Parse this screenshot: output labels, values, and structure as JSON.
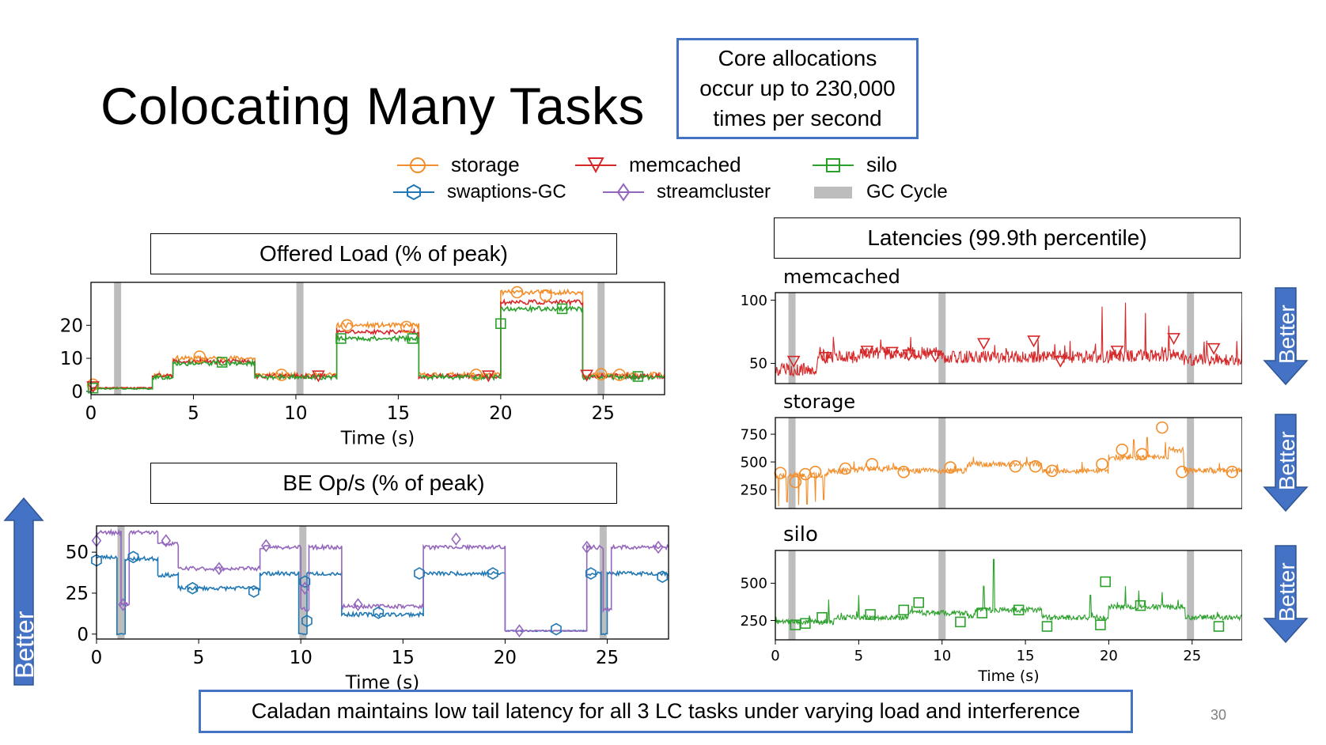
{
  "slide": {
    "title": "Colocating Many Tasks",
    "callout": "Core allocations occur up to 230,000 times per second",
    "bottom_banner": "Caladan maintains low tail latency for all 3 LC tasks under varying load and interference",
    "page_number": "30",
    "better_label": "Better"
  },
  "legend": [
    {
      "label": "storage",
      "color": "#f28e2b",
      "marker": "circle"
    },
    {
      "label": "memcached",
      "color": "#d62728",
      "marker": "triangle-down"
    },
    {
      "label": "silo",
      "color": "#2ca02c",
      "marker": "square"
    },
    {
      "label": "swaptions-GC",
      "color": "#1f77b4",
      "marker": "hexagon"
    },
    {
      "label": "streamcluster",
      "color": "#9467bd",
      "marker": "diamond"
    },
    {
      "label": "GC Cycle",
      "color": "#bdbdbd",
      "marker": "band"
    }
  ],
  "colors": {
    "storage": "#f28e2b",
    "memcached": "#d62728",
    "silo": "#2ca02c",
    "swaptions": "#1f77b4",
    "streamcluster": "#9467bd",
    "gc": "#bdbdbd",
    "accent": "#4472c4"
  },
  "chart_data": [
    {
      "id": "offered-load",
      "type": "line",
      "title": "Offered Load (% of peak)",
      "xlabel": "Time (s)",
      "ylabel": "",
      "xlim": [
        0,
        28
      ],
      "ylim": [
        -1,
        33
      ],
      "xticks": [
        0,
        5,
        10,
        15,
        20,
        25
      ],
      "yticks": [
        0,
        10,
        20
      ],
      "gc_cycles": [
        1.3,
        10.2,
        24.9
      ],
      "series": [
        {
          "name": "storage",
          "key": "storage",
          "steps": [
            [
              0,
              1
            ],
            [
              3,
              5
            ],
            [
              4,
              10
            ],
            [
              8,
              5
            ],
            [
              12,
              20
            ],
            [
              16,
              5
            ],
            [
              20,
              30
            ],
            [
              24,
              5
            ],
            [
              28,
              5
            ]
          ],
          "markers": [
            [
              0.1,
              2
            ],
            [
              5.3,
              10.5
            ],
            [
              9.3,
              5
            ],
            [
              12.5,
              20
            ],
            [
              15.4,
              19.5
            ],
            [
              18.8,
              5
            ],
            [
              20.8,
              30
            ],
            [
              22.2,
              29
            ],
            [
              24.9,
              5.2
            ],
            [
              25.8,
              5
            ]
          ]
        },
        {
          "name": "memcached",
          "key": "memcached",
          "steps": [
            [
              0,
              1
            ],
            [
              3,
              4.6
            ],
            [
              4,
              9
            ],
            [
              8,
              4.6
            ],
            [
              12,
              18
            ],
            [
              16,
              4.6
            ],
            [
              20,
              27
            ],
            [
              24,
              4.6
            ],
            [
              28,
              4.6
            ]
          ],
          "markers": [
            [
              0.1,
              1.5
            ],
            [
              11.1,
              4.8
            ],
            [
              19.4,
              4.8
            ],
            [
              24.2,
              5
            ]
          ]
        },
        {
          "name": "silo",
          "key": "silo",
          "steps": [
            [
              0,
              0.8
            ],
            [
              3,
              4.3
            ],
            [
              4,
              8.5
            ],
            [
              8,
              4.3
            ],
            [
              12,
              16
            ],
            [
              16,
              4.3
            ],
            [
              20,
              25
            ],
            [
              24,
              4.3
            ],
            [
              28,
              4.3
            ]
          ],
          "markers": [
            [
              0.1,
              1
            ],
            [
              6.4,
              8.8
            ],
            [
              12.2,
              16
            ],
            [
              15.7,
              16
            ],
            [
              20,
              20.5
            ],
            [
              23,
              25
            ],
            [
              26.7,
              4.5
            ]
          ]
        }
      ]
    },
    {
      "id": "be-ops",
      "type": "line",
      "title": "BE Op/s (% of peak)",
      "xlabel": "Time (s)",
      "ylabel": "",
      "xlim": [
        0,
        28
      ],
      "ylim": [
        -3,
        66
      ],
      "xticks": [
        0,
        5,
        10,
        15,
        20,
        25
      ],
      "yticks": [
        0,
        25,
        50
      ],
      "gc_cycles": [
        1.2,
        10.1,
        24.8
      ],
      "series": [
        {
          "name": "swaptions-GC",
          "key": "swaptions",
          "steps": [
            [
              0,
              47
            ],
            [
              1,
              0
            ],
            [
              1.4,
              46
            ],
            [
              3,
              36
            ],
            [
              4,
              28
            ],
            [
              8,
              37
            ],
            [
              9.9,
              0
            ],
            [
              10.3,
              37
            ],
            [
              12,
              12
            ],
            [
              16,
              37
            ],
            [
              20,
              2
            ],
            [
              24,
              37
            ],
            [
              24.7,
              0
            ],
            [
              25,
              37
            ],
            [
              28,
              37
            ]
          ],
          "markers": [
            [
              0,
              45
            ],
            [
              1.8,
              47
            ],
            [
              4.7,
              28
            ],
            [
              7.7,
              26
            ],
            [
              10.2,
              32
            ],
            [
              10.3,
              8
            ],
            [
              13.8,
              13
            ],
            [
              15.8,
              37
            ],
            [
              19.4,
              37
            ],
            [
              22.5,
              3
            ],
            [
              24.2,
              37
            ],
            [
              27.7,
              35
            ]
          ]
        },
        {
          "name": "streamcluster",
          "key": "streamcluster",
          "steps": [
            [
              0,
              62
            ],
            [
              1.2,
              18
            ],
            [
              1.6,
              62
            ],
            [
              3,
              55
            ],
            [
              4,
              40
            ],
            [
              8,
              53
            ],
            [
              10,
              15
            ],
            [
              10.4,
              53
            ],
            [
              12,
              17
            ],
            [
              16,
              53
            ],
            [
              20,
              2
            ],
            [
              24,
              53
            ],
            [
              24.8,
              15
            ],
            [
              25.2,
              53
            ],
            [
              28,
              53
            ]
          ],
          "markers": [
            [
              0,
              57
            ],
            [
              1.3,
              18
            ],
            [
              3.4,
              57
            ],
            [
              6,
              40
            ],
            [
              8.3,
              54
            ],
            [
              10.2,
              28
            ],
            [
              12.8,
              18
            ],
            [
              17.6,
              58
            ],
            [
              20.7,
              2
            ],
            [
              24,
              53
            ],
            [
              27.5,
              53
            ]
          ]
        }
      ]
    },
    {
      "id": "latency-memcached",
      "type": "line",
      "title": "Latencies (99.9th percentile)",
      "subtitle": "memcached",
      "xlim": [
        0,
        28
      ],
      "ylim": [
        34,
        106
      ],
      "yticks": [
        50,
        100
      ],
      "gc_cycles": [
        1.0,
        10.0,
        24.9
      ],
      "series": [
        {
          "name": "memcached",
          "key": "memcached",
          "levels": [
            [
              0,
              45
            ],
            [
              2.5,
              55
            ],
            [
              5,
              58
            ],
            [
              10,
              55
            ],
            [
              20,
              56
            ],
            [
              24.5,
              53
            ],
            [
              28,
              53
            ]
          ],
          "noise": 5,
          "spikes": [
            [
              19.6,
              95
            ],
            [
              21,
              98
            ],
            [
              22.2,
              90
            ],
            [
              23.6,
              80
            ],
            [
              28,
              86
            ]
          ],
          "markers": [
            [
              1.1,
              52
            ],
            [
              3,
              55
            ],
            [
              5.5,
              60
            ],
            [
              7,
              59
            ],
            [
              8,
              57
            ],
            [
              9.6,
              56
            ],
            [
              12.5,
              66
            ],
            [
              15.5,
              68
            ],
            [
              17.1,
              52
            ],
            [
              20.5,
              60
            ],
            [
              23.9,
              70
            ],
            [
              26.3,
              62
            ]
          ]
        }
      ]
    },
    {
      "id": "latency-storage",
      "type": "line",
      "subtitle": "storage",
      "xlim": [
        0,
        28
      ],
      "ylim": [
        80,
        900
      ],
      "yticks": [
        250,
        500,
        750
      ],
      "gc_cycles": [
        1.0,
        10.0,
        24.9
      ],
      "series": [
        {
          "name": "storage",
          "key": "storage",
          "levels": [
            [
              0,
              380
            ],
            [
              3.2,
              420
            ],
            [
              5,
              440
            ],
            [
              8,
              420
            ],
            [
              11.5,
              480
            ],
            [
              16,
              420
            ],
            [
              20,
              540
            ],
            [
              23.6,
              610
            ],
            [
              24.5,
              420
            ],
            [
              28,
              420
            ]
          ],
          "noise": 25,
          "drops": [
            [
              0.2,
              100
            ],
            [
              0.7,
              140
            ],
            [
              1.4,
              110
            ],
            [
              1.9,
              120
            ],
            [
              2.4,
              140
            ],
            [
              2.9,
              160
            ]
          ],
          "spikes": [
            [
              21.5,
              700
            ],
            [
              22.3,
              720
            ],
            [
              23.4,
              680
            ]
          ],
          "markers": [
            [
              0.3,
              400
            ],
            [
              1.2,
              320
            ],
            [
              1.8,
              390
            ],
            [
              2.4,
              410
            ],
            [
              4.2,
              440
            ],
            [
              5.8,
              480
            ],
            [
              7.7,
              410
            ],
            [
              10.5,
              450
            ],
            [
              14.4,
              460
            ],
            [
              15.6,
              460
            ],
            [
              16.6,
              420
            ],
            [
              19.6,
              480
            ],
            [
              20.8,
              610
            ],
            [
              22,
              570
            ],
            [
              23.2,
              810
            ],
            [
              24.4,
              410
            ],
            [
              27.4,
              410
            ]
          ]
        }
      ]
    },
    {
      "id": "latency-silo",
      "type": "line",
      "subtitle": "silo",
      "xlabel": "Time (s)",
      "xlim": [
        0,
        28
      ],
      "ylim": [
        120,
        720
      ],
      "xticks": [
        0,
        5,
        10,
        15,
        20,
        25
      ],
      "yticks": [
        250,
        500
      ],
      "gc_cycles": [
        1.0,
        10.0,
        24.9
      ],
      "series": [
        {
          "name": "silo",
          "key": "silo",
          "levels": [
            [
              0,
              240
            ],
            [
              3.5,
              270
            ],
            [
              8,
              300
            ],
            [
              11.5,
              280
            ],
            [
              12,
              320
            ],
            [
              16,
              270
            ],
            [
              20,
              340
            ],
            [
              24.6,
              270
            ],
            [
              28,
              270
            ]
          ],
          "noise": 18,
          "spikes": [
            [
              3.2,
              390
            ],
            [
              5,
              420
            ],
            [
              12.5,
              480
            ],
            [
              13.1,
              660
            ],
            [
              18.9,
              420
            ],
            [
              21,
              480
            ],
            [
              21.8,
              450
            ],
            [
              23.2,
              440
            ]
          ],
          "markers": [
            [
              1.2,
              220
            ],
            [
              1.8,
              230
            ],
            [
              2.8,
              270
            ],
            [
              5.7,
              290
            ],
            [
              7.7,
              320
            ],
            [
              8.6,
              370
            ],
            [
              11.1,
              240
            ],
            [
              12.4,
              300
            ],
            [
              14.6,
              320
            ],
            [
              16.3,
              210
            ],
            [
              19.5,
              220
            ],
            [
              19.8,
              510
            ],
            [
              21.9,
              350
            ],
            [
              26.6,
              210
            ]
          ]
        }
      ]
    }
  ]
}
